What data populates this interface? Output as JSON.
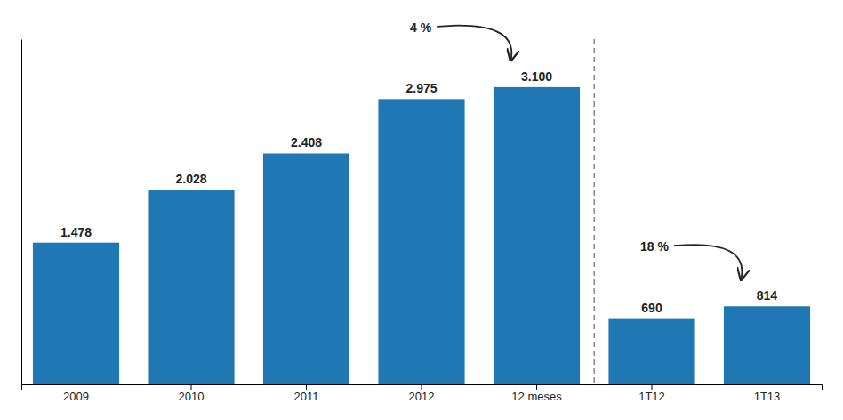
{
  "chart_data": {
    "type": "bar",
    "categories": [
      "2009",
      "2010",
      "2011",
      "2012",
      "12 meses",
      "1T12",
      "1T13"
    ],
    "values": [
      1478,
      2028,
      2408,
      2975,
      3100,
      690,
      814
    ],
    "value_labels": [
      "1.478",
      "2.028",
      "2.408",
      "2.975",
      "3.100",
      "690",
      "814"
    ],
    "data_labels": true,
    "annotations": [
      "4 %",
      "18 %"
    ],
    "ylim": [
      0,
      3600
    ],
    "tick_labels": "x",
    "grid": false
  }
}
